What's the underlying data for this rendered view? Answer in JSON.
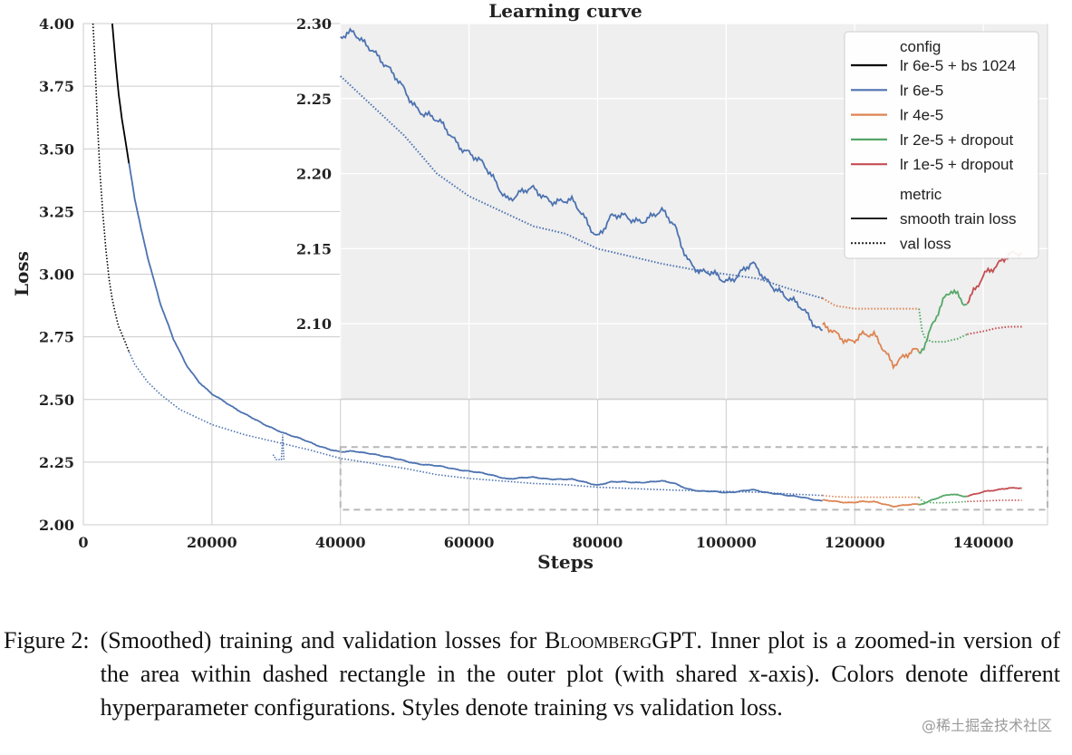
{
  "chart_data": {
    "type": "line",
    "title": "Learning curve",
    "xlabel": "Steps",
    "ylabel": "Loss",
    "xlim": [
      0,
      150000
    ],
    "ylim": [
      2.0,
      4.0
    ],
    "x_ticks": [
      "0",
      "20000",
      "40000",
      "60000",
      "80000",
      "100000",
      "120000",
      "140000"
    ],
    "y_ticks": [
      "2.00",
      "2.25",
      "2.50",
      "2.75",
      "3.00",
      "3.25",
      "3.50",
      "3.75",
      "4.00"
    ],
    "grid": true,
    "inset": {
      "xlim": [
        40000,
        150000
      ],
      "ylim": [
        2.05,
        2.3
      ],
      "y_ticks": [
        "2.10",
        "2.15",
        "2.20",
        "2.25",
        "2.30"
      ],
      "background": "#efefef"
    },
    "zoom_region": {
      "xlim": [
        40000,
        150000
      ],
      "ylim": [
        2.06,
        2.31
      ]
    },
    "legend": {
      "placement": "top-right",
      "config_title": "config",
      "metric_title": "metric",
      "config_entries": [
        {
          "label": "lr 6e-5 + bs 1024",
          "color": "#000000"
        },
        {
          "label": "lr 6e-5",
          "color": "#4c72b0"
        },
        {
          "label": "lr 4e-5",
          "color": "#dd8452"
        },
        {
          "label": "lr 2e-5 + dropout",
          "color": "#55a868"
        },
        {
          "label": "lr 1e-5 + dropout",
          "color": "#c44e52"
        }
      ],
      "metric_entries": [
        {
          "label": "smooth train loss",
          "style": "solid"
        },
        {
          "label": "val loss",
          "style": "dotted"
        }
      ]
    },
    "series": [
      {
        "config": "lr 6e-5 + bs 1024",
        "metric": "smooth train loss",
        "points": [
          [
            4500,
            4.0
          ],
          [
            5000,
            3.85
          ],
          [
            5500,
            3.72
          ],
          [
            6000,
            3.62
          ],
          [
            6500,
            3.54
          ],
          [
            7100,
            3.44
          ]
        ]
      },
      {
        "config": "lr 6e-5 + bs 1024",
        "metric": "val loss",
        "points": [
          [
            1500,
            4.0
          ],
          [
            1800,
            3.85
          ],
          [
            2200,
            3.6
          ],
          [
            2600,
            3.4
          ],
          [
            3000,
            3.25
          ],
          [
            3500,
            3.1
          ],
          [
            4000,
            2.98
          ],
          [
            4500,
            2.9
          ],
          [
            5000,
            2.84
          ],
          [
            5500,
            2.79
          ],
          [
            6000,
            2.76
          ],
          [
            6500,
            2.73
          ],
          [
            7100,
            2.69
          ]
        ]
      },
      {
        "config": "lr 6e-5",
        "metric": "smooth train loss",
        "points": [
          [
            7100,
            3.44
          ],
          [
            8000,
            3.3
          ],
          [
            9000,
            3.18
          ],
          [
            10000,
            3.07
          ],
          [
            12000,
            2.88
          ],
          [
            14000,
            2.74
          ],
          [
            16000,
            2.64
          ],
          [
            18000,
            2.57
          ],
          [
            20000,
            2.52
          ],
          [
            24000,
            2.46
          ],
          [
            28000,
            2.4
          ],
          [
            32000,
            2.36
          ],
          [
            36000,
            2.32
          ],
          [
            40000,
            2.29
          ],
          [
            42000,
            2.292
          ],
          [
            45000,
            2.285
          ],
          [
            48000,
            2.265
          ],
          [
            52000,
            2.245
          ],
          [
            56000,
            2.23
          ],
          [
            60000,
            2.215
          ],
          [
            64000,
            2.195
          ],
          [
            66000,
            2.185
          ],
          [
            70000,
            2.188
          ],
          [
            72000,
            2.185
          ],
          [
            76000,
            2.18
          ],
          [
            78000,
            2.17
          ],
          [
            80000,
            2.16
          ],
          [
            82000,
            2.17
          ],
          [
            86000,
            2.17
          ],
          [
            90000,
            2.173
          ],
          [
            92000,
            2.165
          ],
          [
            94000,
            2.145
          ],
          [
            96000,
            2.133
          ],
          [
            100000,
            2.13
          ],
          [
            104000,
            2.138
          ],
          [
            106000,
            2.13
          ],
          [
            108000,
            2.125
          ],
          [
            110000,
            2.115
          ],
          [
            114000,
            2.1
          ],
          [
            115000,
            2.097
          ]
        ]
      },
      {
        "config": "lr 6e-5",
        "metric": "val loss",
        "points": [
          [
            7100,
            2.69
          ],
          [
            8000,
            2.64
          ],
          [
            10000,
            2.57
          ],
          [
            12000,
            2.52
          ],
          [
            15000,
            2.46
          ],
          [
            20000,
            2.4
          ],
          [
            25000,
            2.36
          ],
          [
            30000,
            2.33
          ],
          [
            35000,
            2.3
          ],
          [
            40000,
            2.265
          ],
          [
            45000,
            2.245
          ],
          [
            50000,
            2.225
          ],
          [
            55000,
            2.2
          ],
          [
            60000,
            2.185
          ],
          [
            65000,
            2.175
          ],
          [
            70000,
            2.165
          ],
          [
            75000,
            2.16
          ],
          [
            80000,
            2.15
          ],
          [
            85000,
            2.145
          ],
          [
            90000,
            2.14
          ],
          [
            95000,
            2.136
          ],
          [
            100000,
            2.133
          ],
          [
            105000,
            2.13
          ],
          [
            110000,
            2.123
          ],
          [
            115000,
            2.117
          ]
        ]
      },
      {
        "config": "lr 4e-5",
        "metric": "smooth train loss",
        "points": [
          [
            115000,
            2.097
          ],
          [
            117000,
            2.092
          ],
          [
            119000,
            2.09
          ],
          [
            121000,
            2.093
          ],
          [
            123000,
            2.09
          ],
          [
            124000,
            2.085
          ],
          [
            125000,
            2.08
          ],
          [
            126000,
            2.075
          ],
          [
            127000,
            2.078
          ],
          [
            128000,
            2.08
          ],
          [
            130000,
            2.08
          ]
        ]
      },
      {
        "config": "lr 4e-5",
        "metric": "val loss",
        "points": [
          [
            115000,
            2.117
          ],
          [
            117000,
            2.112
          ],
          [
            120000,
            2.11
          ],
          [
            125000,
            2.11
          ],
          [
            130000,
            2.11
          ]
        ]
      },
      {
        "config": "lr 2e-5 + dropout",
        "metric": "smooth train loss",
        "points": [
          [
            130000,
            2.08
          ],
          [
            131000,
            2.09
          ],
          [
            132000,
            2.1
          ],
          [
            133000,
            2.108
          ],
          [
            134000,
            2.115
          ],
          [
            135000,
            2.12
          ],
          [
            136000,
            2.118
          ],
          [
            137000,
            2.115
          ],
          [
            137500,
            2.115
          ]
        ]
      },
      {
        "config": "lr 2e-5 + dropout",
        "metric": "val loss",
        "points": [
          [
            130000,
            2.11
          ],
          [
            130500,
            2.095
          ],
          [
            131000,
            2.09
          ],
          [
            132000,
            2.088
          ],
          [
            134000,
            2.088
          ],
          [
            136000,
            2.09
          ],
          [
            137500,
            2.093
          ]
        ]
      },
      {
        "config": "lr 1e-5 + dropout",
        "metric": "smooth train loss",
        "points": [
          [
            137500,
            2.115
          ],
          [
            139000,
            2.122
          ],
          [
            140000,
            2.13
          ],
          [
            141000,
            2.135
          ],
          [
            142000,
            2.14
          ],
          [
            143000,
            2.145
          ],
          [
            144000,
            2.148
          ],
          [
            145000,
            2.146
          ],
          [
            146000,
            2.145
          ]
        ]
      },
      {
        "config": "lr 1e-5 + dropout",
        "metric": "val loss",
        "points": [
          [
            137500,
            2.093
          ],
          [
            140000,
            2.095
          ],
          [
            142000,
            2.097
          ],
          [
            144000,
            2.098
          ],
          [
            146000,
            2.098
          ]
        ]
      }
    ],
    "annotations": [
      {
        "type": "spike",
        "series": "lr 6e-5 val loss",
        "points": [
          [
            29500,
            2.28
          ],
          [
            30000,
            2.26
          ],
          [
            30800,
            2.26
          ],
          [
            31000,
            2.36
          ],
          [
            31200,
            2.26
          ]
        ]
      }
    ]
  },
  "caption": {
    "label": "Figure 2:",
    "text_before": "(Smoothed) training and validation losses for ",
    "model_name": "BloombergGPT",
    "text_after": ". Inner plot is a zoomed-in version of the area within dashed rectangle in the outer plot (with shared x-axis). Colors denote different hyperparameter configurations. Styles denote training vs validation loss."
  },
  "watermark": "@稀土掘金技术社区"
}
